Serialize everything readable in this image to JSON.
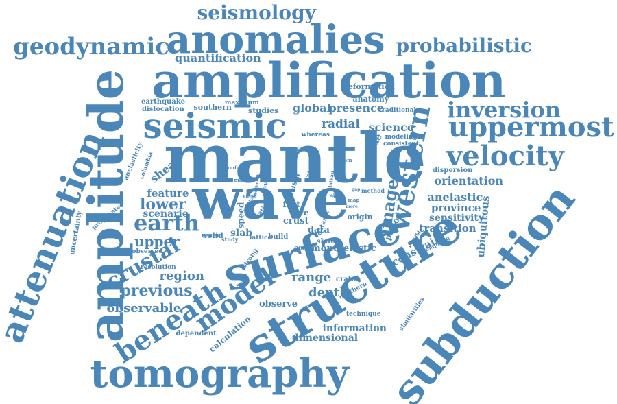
{
  "palette": {
    "word": "#4a86b8",
    "background": "#ffffff"
  },
  "words": [
    {
      "key": "mantle",
      "text": "mantle",
      "weight": 100,
      "orientation": "horizontal"
    },
    {
      "key": "wave",
      "text": "wave",
      "weight": 92,
      "orientation": "horizontal"
    },
    {
      "key": "amplification",
      "text": "amplification",
      "weight": 85,
      "orientation": "horizontal"
    },
    {
      "key": "structure",
      "text": "structure",
      "weight": 90,
      "orientation": "diagonal"
    },
    {
      "key": "surface",
      "text": "surface",
      "weight": 86,
      "orientation": "diagonal"
    },
    {
      "key": "amplitude",
      "text": "amplitude",
      "weight": 88,
      "orientation": "vertical"
    },
    {
      "key": "subduction",
      "text": "subduction",
      "weight": 82,
      "orientation": "diagonal"
    },
    {
      "key": "tomography",
      "text": "tomography",
      "weight": 78,
      "orientation": "horizontal"
    },
    {
      "key": "attenuation",
      "text": "attenuation",
      "weight": 70,
      "orientation": "vertical"
    },
    {
      "key": "anomalies",
      "text": "anomalies",
      "weight": 68,
      "orientation": "horizontal"
    },
    {
      "key": "seismic",
      "text": "seismic",
      "weight": 66,
      "orientation": "horizontal"
    },
    {
      "key": "western",
      "text": "western",
      "weight": 60,
      "orientation": "vertical"
    },
    {
      "key": "uppermost",
      "text": "uppermost",
      "weight": 50,
      "orientation": "horizontal"
    },
    {
      "key": "velocity",
      "text": "velocity",
      "weight": 50,
      "orientation": "horizontal"
    },
    {
      "key": "inversion",
      "text": "inversion",
      "weight": 42,
      "orientation": "horizontal"
    },
    {
      "key": "beneath",
      "text": "beneath",
      "weight": 46,
      "orientation": "diagonal"
    },
    {
      "key": "model",
      "text": "model",
      "weight": 42,
      "orientation": "diagonal"
    },
    {
      "key": "geodynamic",
      "text": "geodynamic",
      "weight": 36,
      "orientation": "horizontal"
    },
    {
      "key": "probabilistic",
      "text": "probabilistic",
      "weight": 30,
      "orientation": "horizontal"
    },
    {
      "key": "seismology",
      "text": "seismology",
      "weight": 30,
      "orientation": "horizontal"
    },
    {
      "key": "earth",
      "text": "earth",
      "weight": 30,
      "orientation": "horizontal"
    },
    {
      "key": "crustal",
      "text": "crustal",
      "weight": 30,
      "orientation": "diagonal"
    },
    {
      "key": "image",
      "text": "image",
      "weight": 24,
      "orientation": "vertical"
    },
    {
      "key": "previous",
      "text": "previous",
      "weight": 22,
      "orientation": "horizontal"
    },
    {
      "key": "lower",
      "text": "lower",
      "weight": 20,
      "orientation": "horizontal"
    },
    {
      "key": "upper",
      "text": "upper",
      "weight": 18,
      "orientation": "horizontal"
    },
    {
      "key": "range",
      "text": "range",
      "weight": 18,
      "orientation": "horizontal"
    },
    {
      "key": "depth",
      "text": "depth",
      "weight": 18,
      "orientation": "horizontal"
    },
    {
      "key": "observable",
      "text": "observable",
      "weight": 16,
      "orientation": "horizontal"
    },
    {
      "key": "region",
      "text": "region",
      "weight": 16,
      "orientation": "horizontal"
    },
    {
      "key": "radial",
      "text": "radial",
      "weight": 16,
      "orientation": "horizontal"
    },
    {
      "key": "global",
      "text": "global",
      "weight": 16,
      "orientation": "horizontal"
    },
    {
      "key": "presence",
      "text": "presence",
      "weight": 16,
      "orientation": "horizontal"
    },
    {
      "key": "science",
      "text": "science",
      "weight": 15,
      "orientation": "horizontal"
    },
    {
      "key": "zone",
      "text": "zone",
      "weight": 14,
      "orientation": "diagonal"
    },
    {
      "key": "quantification",
      "text": "quantification",
      "weight": 14,
      "orientation": "horizontal"
    },
    {
      "key": "orientation",
      "text": "orientation",
      "weight": 15,
      "orientation": "horizontal"
    },
    {
      "key": "anelastic",
      "text": "anelastic",
      "weight": 14,
      "orientation": "horizontal"
    },
    {
      "key": "province",
      "text": "province",
      "weight": 14,
      "orientation": "horizontal"
    },
    {
      "key": "sensitivity",
      "text": "sensitivity",
      "weight": 13,
      "orientation": "horizontal"
    },
    {
      "key": "transition",
      "text": "transition",
      "weight": 14,
      "orientation": "horizontal"
    },
    {
      "key": "constrain",
      "text": "constrain",
      "weight": 14,
      "orientation": "diagonal"
    },
    {
      "key": "ubiquitous",
      "text": "ubiquitous",
      "weight": 14,
      "orientation": "vertical"
    },
    {
      "key": "feature",
      "text": "feature",
      "weight": 13,
      "orientation": "horizontal"
    },
    {
      "key": "scenario",
      "text": "scenario",
      "weight": 13,
      "orientation": "horizontal"
    },
    {
      "key": "shear",
      "text": "shear",
      "weight": 14,
      "orientation": "diagonal"
    },
    {
      "key": "slab",
      "text": "slab",
      "weight": 13,
      "orientation": "horizontal"
    },
    {
      "key": "data",
      "text": "data",
      "weight": 12,
      "orientation": "horizontal"
    },
    {
      "key": "crust",
      "text": "crust",
      "weight": 11,
      "orientation": "horizontal"
    },
    {
      "key": "love",
      "text": "love",
      "weight": 11,
      "orientation": "horizontal"
    },
    {
      "key": "fast",
      "text": "fast",
      "weight": 11,
      "orientation": "horizontal"
    },
    {
      "key": "speed",
      "text": "speed",
      "weight": 11,
      "orientation": "vertical"
    },
    {
      "key": "monte",
      "text": "monte",
      "weight": 12,
      "orientation": "horizontal"
    },
    {
      "key": "elastic",
      "text": "elastic",
      "weight": 12,
      "orientation": "horizontal"
    },
    {
      "key": "observe",
      "text": "observe",
      "weight": 12,
      "orientation": "horizontal"
    },
    {
      "key": "information",
      "text": "information",
      "weight": 13,
      "orientation": "horizontal"
    },
    {
      "key": "dimensional",
      "text": "dimensional",
      "weight": 13,
      "orientation": "horizontal"
    },
    {
      "key": "calculation",
      "text": "calculation",
      "weight": 11,
      "orientation": "diagonal"
    },
    {
      "key": "dependent",
      "text": "dependent",
      "weight": 9,
      "orientation": "horizontal"
    },
    {
      "key": "anatomy",
      "text": "anatomy",
      "weight": 10,
      "orientation": "horizontal"
    },
    {
      "key": "deformation",
      "text": "deformation",
      "weight": 10,
      "orientation": "horizontal"
    },
    {
      "key": "traditional",
      "text": "traditional",
      "weight": 8,
      "orientation": "horizontal"
    },
    {
      "key": "earthquake",
      "text": "earthquake",
      "weight": 9,
      "orientation": "horizontal"
    },
    {
      "key": "dislocation",
      "text": "dislocation",
      "weight": 9,
      "orientation": "horizontal"
    },
    {
      "key": "southern",
      "text": "southern",
      "weight": 10,
      "orientation": "horizontal"
    },
    {
      "key": "maximum",
      "text": "maximum",
      "weight": 8,
      "orientation": "horizontal"
    },
    {
      "key": "studies",
      "text": "studies",
      "weight": 10,
      "orientation": "horizontal"
    },
    {
      "key": "modeling",
      "text": "modeling",
      "weight": 8,
      "orientation": "horizontal"
    },
    {
      "key": "consistent",
      "text": "consistent",
      "weight": 8,
      "orientation": "horizontal"
    },
    {
      "key": "whereas",
      "text": "whereas",
      "weight": 8,
      "orientation": "horizontal"
    },
    {
      "key": "dispersion",
      "text": "dispersion",
      "weight": 9,
      "orientation": "horizontal"
    },
    {
      "key": "period",
      "text": "period",
      "weight": 11,
      "orientation": "diagonal"
    },
    {
      "key": "origin",
      "text": "origin",
      "weight": 10,
      "orientation": "horizontal"
    },
    {
      "key": "show",
      "text": "show",
      "weight": 9,
      "orientation": "horizontal"
    },
    {
      "key": "ocean",
      "text": "ocean",
      "weight": 8,
      "orientation": "horizontal"
    },
    {
      "key": "lattice",
      "text": "lattice",
      "weight": 8,
      "orientation": "horizontal"
    },
    {
      "key": "build",
      "text": "build",
      "weight": 9,
      "orientation": "horizontal"
    },
    {
      "key": "recent",
      "text": "recent",
      "weight": 8,
      "orientation": "horizontal"
    },
    {
      "key": "solid",
      "text": "solid",
      "weight": 10,
      "orientation": "horizontal"
    },
    {
      "key": "study",
      "text": "study",
      "weight": 7,
      "orientation": "horizontal"
    },
    {
      "key": "observed",
      "text": "observed",
      "weight": 8,
      "orientation": "horizontal"
    },
    {
      "key": "resolution",
      "text": "resolution",
      "weight": 8,
      "orientation": "horizontal"
    },
    {
      "key": "strong",
      "text": "strong",
      "weight": 8,
      "orientation": "diagonal"
    },
    {
      "key": "craton",
      "text": "craton",
      "weight": 9,
      "orientation": "horizontal"
    },
    {
      "key": "northern",
      "text": "northern",
      "weight": 8,
      "orientation": "diagonal"
    },
    {
      "key": "technique",
      "text": "technique",
      "weight": 8,
      "orientation": "horizontal"
    },
    {
      "key": "similarities",
      "text": "similarities",
      "weight": 8,
      "orientation": "diagonal"
    },
    {
      "key": "uncertainty",
      "text": "uncertainty",
      "weight": 9,
      "orientation": "vertical"
    },
    {
      "key": "propagate",
      "text": "propagate",
      "weight": 8,
      "orientation": "diagonal"
    },
    {
      "key": "anelasticity",
      "text": "anelasticity",
      "weight": 8,
      "orientation": "diagonal"
    },
    {
      "key": "columbia",
      "text": "columbia",
      "weight": 7,
      "orientation": "diagonal"
    },
    {
      "key": "several",
      "text": "several",
      "weight": 9,
      "orientation": "vertical"
    },
    {
      "key": "basin",
      "text": "basin",
      "weight": 10,
      "orientation": "diagonal"
    },
    {
      "key": "dataset",
      "text": "dataset",
      "weight": 8,
      "orientation": "diagonal"
    },
    {
      "key": "mapping",
      "text": "mapping",
      "weight": 7,
      "orientation": "diagonal"
    },
    {
      "key": "possible",
      "text": "possible",
      "weight": 6,
      "orientation": "diagonal"
    },
    {
      "key": "method",
      "text": "method",
      "weight": 7,
      "orientation": "horizontal"
    },
    {
      "key": "map",
      "text": "map",
      "weight": 6,
      "orientation": "horizontal"
    },
    {
      "key": "plateau",
      "text": "plateau",
      "weight": 6,
      "orientation": "vertical"
    },
    {
      "key": "system",
      "text": "system",
      "weight": 6,
      "orientation": "horizontal"
    },
    {
      "key": "confirm",
      "text": "confirm",
      "weight": 6,
      "orientation": "horizontal"
    },
    {
      "key": "colorado",
      "text": "colorado",
      "weight": 6,
      "orientation": "diagonal"
    },
    {
      "key": "many",
      "text": "many",
      "weight": 6,
      "orientation": "horizontal"
    },
    {
      "key": "mode",
      "text": "mode",
      "weight": 5,
      "orientation": "horizontal"
    },
    {
      "key": "effect",
      "text": "effect",
      "weight": 5,
      "orientation": "horizontal"
    },
    {
      "key": "time",
      "text": "time",
      "weight": 5,
      "orientation": "horizontal"
    },
    {
      "key": "more",
      "text": "more",
      "weight": 5,
      "orientation": "horizontal"
    },
    {
      "key": "allow",
      "text": "allow",
      "weight": 5,
      "orientation": "horizontal"
    },
    {
      "key": "gap",
      "text": "gap",
      "weight": 5,
      "orientation": "horizontal"
    },
    {
      "key": "phase",
      "text": "phase",
      "weight": 5,
      "orientation": "diagonal"
    },
    {
      "key": "pacific",
      "text": "pacific",
      "weight": 5,
      "orientation": "diagonal"
    },
    {
      "key": "ratio",
      "text": "ratio",
      "weight": 8,
      "orientation": "diagonal"
    },
    {
      "key": "frequency",
      "text": "frequency",
      "weight": 5,
      "orientation": "vertical"
    }
  ]
}
